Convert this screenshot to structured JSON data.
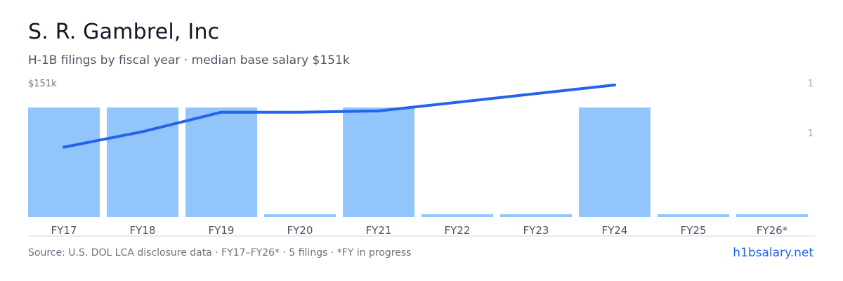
{
  "title": "S. R. Gambrel, Inc",
  "subtitle": "H-1B filings by fiscal year · median base salary $151k",
  "salary_axis_label": "$151k",
  "count_axis_labels": [
    "1",
    "1"
  ],
  "footer": {
    "source": "Source: U.S. DOL LCA disclosure data · FY17–FY26* · 5 filings · *FY in progress",
    "brand": "h1bsalary.net"
  },
  "colors": {
    "bar": "#93c5fd",
    "line": "#2563eb",
    "axis": "#d1d5db"
  },
  "chart_data": {
    "type": "bar",
    "categories": [
      "FY17",
      "FY18",
      "FY19",
      "FY20",
      "FY21",
      "FY22",
      "FY23",
      "FY24",
      "FY25",
      "FY26*"
    ],
    "series": [
      {
        "type": "bar",
        "values": [
          1,
          1,
          1,
          0,
          1,
          0,
          0,
          1,
          0,
          0
        ]
      },
      {
        "type": "line",
        "values": [
          127,
          133,
          140.5,
          140.5,
          141,
          null,
          null,
          151,
          null,
          null
        ]
      }
    ],
    "y_count_max": 1,
    "y_salary_max": 151,
    "y_salary_unit": "$k"
  }
}
